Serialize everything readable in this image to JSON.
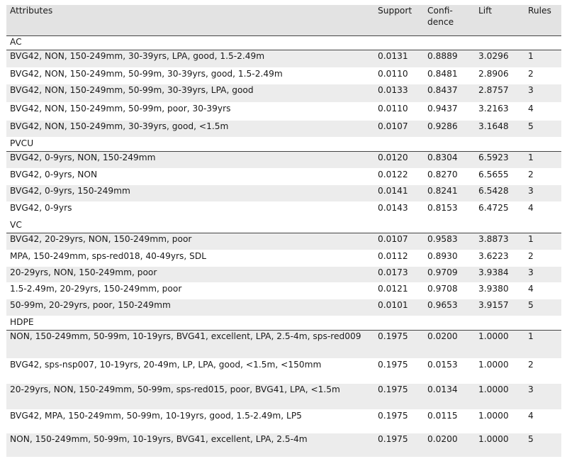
{
  "header": {
    "attributes": "Attributes",
    "support": "Support",
    "confidence": "Confi-\ndence",
    "lift": "Lift",
    "rules": "Rules"
  },
  "sections": [
    {
      "name": "AC",
      "rows": [
        {
          "attributes": "BVG42, NON, 150-249mm, 30-39yrs, LPA, good, 1.5-2.49m",
          "support": "0.0131",
          "confidence": "0.8889",
          "lift": "3.0296",
          "rule": "1",
          "height": 25
        },
        {
          "attributes": "BVG42, NON, 150-249mm, 50-99m, 30-39yrs, good, 1.5-2.49m",
          "support": "0.0110",
          "confidence": "0.8481",
          "lift": "2.8906",
          "rule": "2",
          "height": 23
        },
        {
          "attributes": "BVG42, NON, 150-249mm, 50-99m, 30-39yrs, LPA, good",
          "support": "0.0133",
          "confidence": "0.8437",
          "lift": "2.8757",
          "rule": "3",
          "height": 26
        },
        {
          "attributes": "BVG42, NON, 150-249mm, 50-99m, poor, 30-39yrs",
          "support": "0.0110",
          "confidence": "0.9437",
          "lift": "3.2163",
          "rule": "4",
          "height": 25
        },
        {
          "attributes": "BVG42, NON, 150-249mm, 30-39yrs, good, <1.5m",
          "support": "0.0107",
          "confidence": "0.9286",
          "lift": "3.1648",
          "rule": "5",
          "height": 24
        }
      ]
    },
    {
      "name": "PVCU",
      "rows": [
        {
          "attributes": "BVG42, 0-9yrs, NON, 150-249mm",
          "support": "0.0120",
          "confidence": "0.8304",
          "lift": "6.5923",
          "rule": "1",
          "height": 24
        },
        {
          "attributes": "BVG42, 0-9yrs, NON",
          "support": "0.0122",
          "confidence": "0.8270",
          "lift": "6.5655",
          "rule": "2",
          "height": 23
        },
        {
          "attributes": "BVG42, 0-9yrs, 150-249mm",
          "support": "0.0141",
          "confidence": "0.8241",
          "lift": "6.5428",
          "rule": "3",
          "height": 24
        },
        {
          "attributes": "BVG42, 0-9yrs",
          "support": "0.0143",
          "confidence": "0.8153",
          "lift": "6.4725",
          "rule": "4",
          "height": 24
        }
      ]
    },
    {
      "name": "VC",
      "rows": [
        {
          "attributes": "BVG42, 20-29yrs, NON, 150-249mm, poor",
          "support": "0.0107",
          "confidence": "0.9583",
          "lift": "3.8873",
          "rule": "1",
          "height": 24
        },
        {
          "attributes": "MPA, 150-249mm, sps-red018, 40-49yrs, SDL",
          "support": "0.0112",
          "confidence": "0.8930",
          "lift": "3.6223",
          "rule": "2",
          "height": 23
        },
        {
          "attributes": "20-29yrs, NON, 150-249mm, poor",
          "support": "0.0173",
          "confidence": "0.9709",
          "lift": "3.9384",
          "rule": "3",
          "height": 23
        },
        {
          "attributes": "1.5-2.49m, 20-29yrs, 150-249mm, poor",
          "support": "0.0121",
          "confidence": "0.9708",
          "lift": "3.9380",
          "rule": "4",
          "height": 23
        },
        {
          "attributes": "50-99m, 20-29yrs, poor, 150-249mm",
          "support": "0.0101",
          "confidence": "0.9653",
          "lift": "3.9157",
          "rule": "5",
          "height": 24
        }
      ]
    },
    {
      "name": "HDPE",
      "rows": [
        {
          "attributes": "NON, 150-249mm, 50-99m, 10-19yrs, BVG41, excellent, LPA, 2.5-4m, sps-red009",
          "support": "0.1975",
          "confidence": "0.0200",
          "lift": "1.0000",
          "rule": "1",
          "height": 40
        },
        {
          "attributes": "BVG42, sps-nsp007, 10-19yrs, 20-49m, LP, LPA, good, <1.5m, <150mm",
          "support": "0.1975",
          "confidence": "0.0153",
          "lift": "1.0000",
          "rule": "2",
          "height": 35
        },
        {
          "attributes": "20-29yrs, NON, 150-249mm, 50-99m, sps-red015, poor, BVG41, LPA, <1.5m",
          "support": "0.1975",
          "confidence": "0.0134",
          "lift": "1.0000",
          "rule": "3",
          "height": 37
        },
        {
          "attributes": "BVG42, MPA, 150-249mm, 50-99m, 10-19yrs, good, 1.5-2.49m, LP5",
          "support": "0.1975",
          "confidence": "0.0115",
          "lift": "1.0000",
          "rule": "4",
          "height": 33
        },
        {
          "attributes": "NON, 150-249mm, 50-99m, 10-19yrs, BVG41, excellent, LPA, 2.5-4m",
          "support": "0.1975",
          "confidence": "0.0200",
          "lift": "1.0000",
          "rule": "5",
          "height": 34
        }
      ]
    }
  ]
}
